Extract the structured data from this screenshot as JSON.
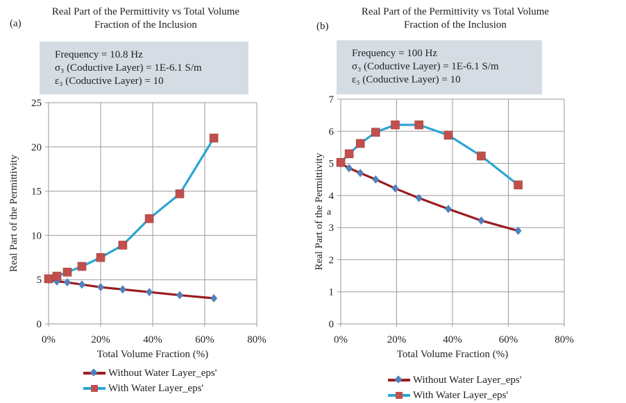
{
  "chart_data": [
    {
      "type": "line",
      "panel_label": "(a)",
      "title": "Real Part of the Permittivity vs Total Volume Fraction of the Inclusion",
      "title_lines": [
        "Real Part of the Permittivity vs Total Volume",
        "Fraction of the Inclusion"
      ],
      "info_lines": [
        "Frequency = 10.8 Hz",
        "σ₃ (Coductive Layer) = 1E-6.1 S/m",
        "ε₃ (Coductive Layer) = 10"
      ],
      "xlabel": "Total Volume Fraction (%)",
      "ylabel": "Real Part of the Permittivity",
      "xlim": [
        0,
        80
      ],
      "ylim": [
        0,
        25
      ],
      "xticks": [
        0,
        20,
        40,
        60,
        80
      ],
      "xtick_labels": [
        "0%",
        "20%",
        "40%",
        "60%",
        "80%"
      ],
      "yticks": [
        0,
        5,
        10,
        15,
        20,
        25
      ],
      "ytick_labels": [
        "0",
        "5",
        "10",
        "15",
        "20",
        "25"
      ],
      "grid": true,
      "legend_position": "bottom",
      "series": [
        {
          "name": "Without Water Layer_eps'",
          "line_color": "#9b1c1f",
          "marker": "diamond",
          "marker_color": "#4f81bd",
          "x": [
            0,
            3.2,
            7.2,
            12.8,
            20,
            28.5,
            38.7,
            50.4,
            63.5
          ],
          "y": [
            5.0,
            4.8,
            4.7,
            4.45,
            4.15,
            3.9,
            3.6,
            3.25,
            2.9
          ]
        },
        {
          "name": "With Water Layer_eps'",
          "line_color": "#2aa6d3",
          "marker": "square",
          "marker_color": "#c0504d",
          "x": [
            0,
            3.2,
            7.2,
            12.8,
            20,
            28.5,
            38.7,
            50.4,
            63.5
          ],
          "y": [
            5.1,
            5.4,
            5.85,
            6.5,
            7.5,
            8.9,
            11.9,
            14.7,
            21.0
          ]
        }
      ]
    },
    {
      "type": "line",
      "panel_label": "(b)",
      "title": "Real Part of the Permittivity vs Total Volume Fraction of the Inclusion",
      "title_lines": [
        "Real Part of the Permittivity vs Total Volume",
        "Fraction of the Inclusion"
      ],
      "info_lines": [
        "Frequency = 100 Hz",
        "σ₃ (Coductive Layer) = 1E-6.1 S/m",
        "ε₃ (Coductive Layer) = 10"
      ],
      "annotation": "a",
      "xlabel": "Total Volume Fraction (%)",
      "ylabel": "Real Part of the Permittivity",
      "xlim": [
        0,
        80
      ],
      "ylim": [
        0,
        7
      ],
      "xticks": [
        0,
        20,
        40,
        60,
        80
      ],
      "xtick_labels": [
        "0%",
        "20%",
        "40%",
        "60%",
        "80%"
      ],
      "yticks": [
        0,
        1,
        2,
        3,
        4,
        5,
        6,
        7
      ],
      "ytick_labels": [
        "0",
        "1",
        "2",
        "3",
        "4",
        "5",
        "6",
        "7"
      ],
      "grid": true,
      "legend_position": "bottom",
      "series": [
        {
          "name": "Without Water Layer_eps'",
          "line_color": "#9b1c1f",
          "marker": "diamond",
          "marker_color": "#4f81bd",
          "x": [
            0,
            3.0,
            7.0,
            12.5,
            19.5,
            28,
            38.5,
            50.3,
            63.5
          ],
          "y": [
            5.0,
            4.85,
            4.7,
            4.5,
            4.22,
            3.92,
            3.58,
            3.22,
            2.9
          ]
        },
        {
          "name": "With Water Layer_eps'",
          "line_color": "#2aa6d3",
          "marker": "square",
          "marker_color": "#c0504d",
          "x": [
            0,
            3.0,
            7.0,
            12.5,
            19.5,
            28,
            38.5,
            50.3,
            63.5
          ],
          "y": [
            5.03,
            5.3,
            5.62,
            5.97,
            6.2,
            6.2,
            5.88,
            5.23,
            4.33
          ]
        }
      ]
    }
  ]
}
